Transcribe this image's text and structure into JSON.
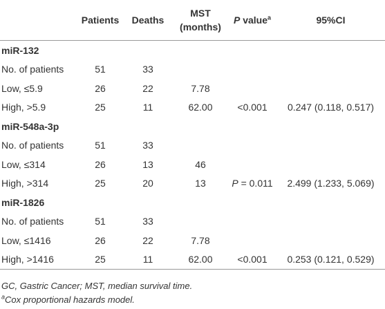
{
  "table": {
    "header": [
      {
        "text": ""
      },
      {
        "text": "Patients"
      },
      {
        "text": "Deaths"
      },
      {
        "lines": [
          "MST",
          "(months)"
        ]
      },
      {
        "italic": "P",
        "text": " value",
        "sup": "a"
      },
      {
        "text": "95%CI"
      }
    ],
    "groups": [
      {
        "name": "miR-132",
        "rows": [
          [
            "No. of patients",
            "51",
            "33",
            "",
            "",
            ""
          ],
          [
            "Low, ≤5.9",
            "26",
            "22",
            "7.78",
            "",
            ""
          ],
          [
            "High, >5.9",
            "25",
            "11",
            "62.00",
            "<0.001",
            "0.247 (0.118, 0.517)"
          ]
        ]
      },
      {
        "name": "miR-548a-3p",
        "rows": [
          [
            "No. of patients",
            "51",
            "33",
            "",
            "",
            ""
          ],
          [
            "Low, ≤314",
            "26",
            "13",
            "46",
            "",
            ""
          ],
          [
            "High, >314",
            "25",
            "20",
            "13",
            {
              "italic": "P",
              "text": " = 0.011"
            },
            "2.499 (1.233, 5.069)"
          ]
        ]
      },
      {
        "name": "miR-1826",
        "rows": [
          [
            "No. of patients",
            "51",
            "33",
            "",
            "",
            ""
          ],
          [
            "Low, ≤1416",
            "26",
            "22",
            "7.78",
            "",
            ""
          ],
          [
            "High, >1416",
            "25",
            "11",
            "62.00",
            "<0.001",
            "0.253 (0.121, 0.529)"
          ]
        ]
      }
    ]
  },
  "footnotes": [
    {
      "text": "GC, Gastric Cancer; MST, median survival time."
    },
    {
      "sup": "a",
      "text": "Cox proportional hazards model."
    }
  ]
}
